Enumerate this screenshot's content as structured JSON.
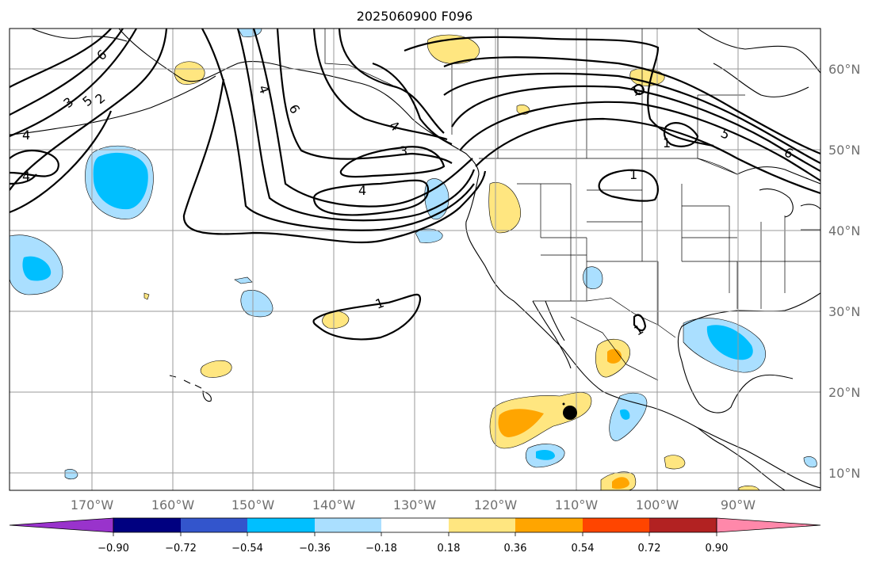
{
  "title": "2025060900 F096",
  "lon_labels": [
    "170°W",
    "160°W",
    "150°W",
    "140°W",
    "130°W",
    "120°W",
    "110°W",
    "100°W",
    "90°W"
  ],
  "lat_labels": [
    "60°N",
    "50°N",
    "40°N",
    "30°N",
    "20°N",
    "10°N"
  ],
  "colorbar": {
    "tick_labels": [
      "−0.90",
      "−0.72",
      "−0.54",
      "−0.36",
      "−0.18",
      "0.18",
      "0.36",
      "0.54",
      "0.72",
      "0.90"
    ],
    "colors": [
      "#9933cc",
      "#000080",
      "#3355cc",
      "#00bfff",
      "#aadfff",
      "#ffffff",
      "#ffe680",
      "#ffa500",
      "#ff4500",
      "#b22222",
      "#ff88aa"
    ]
  },
  "contour_labels": [
    "6",
    "5",
    "3",
    "2",
    "4",
    "4",
    "4",
    "6",
    "3",
    "4",
    "4",
    "1",
    "1",
    "5",
    "6",
    "1",
    "1",
    "1"
  ]
}
